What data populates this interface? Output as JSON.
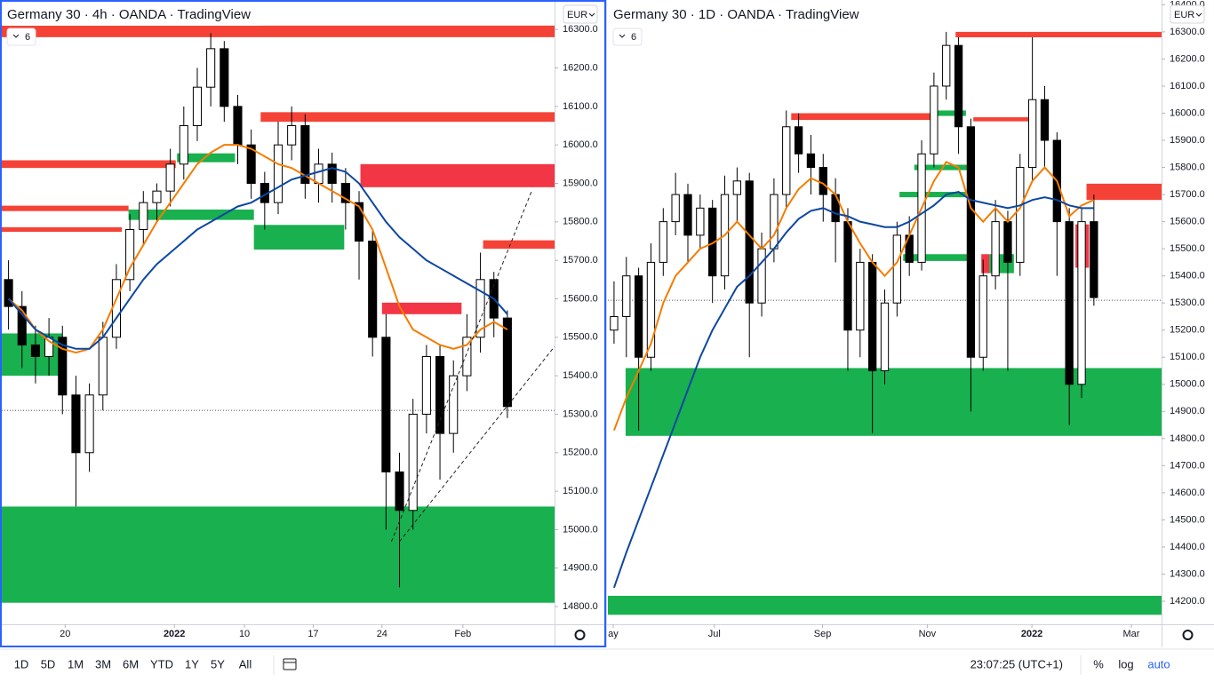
{
  "chart_data": [
    {
      "type": "candlestick",
      "title": "Germany 30 · 4h · OANDA · TradingView",
      "indicator_count": 6,
      "currency": "EUR",
      "x": [
        0,
        1,
        2,
        3,
        4,
        5,
        6,
        7,
        8,
        9,
        10,
        11,
        12,
        13,
        14,
        15,
        16,
        17,
        18,
        19,
        20,
        21,
        22,
        23,
        24,
        25,
        26,
        27,
        28,
        29,
        30,
        31,
        32,
        33,
        34,
        35,
        36,
        37
      ],
      "open": [
        15650,
        15580,
        15480,
        15450,
        15500,
        15350,
        15200,
        15350,
        15500,
        15650,
        15780,
        15850,
        15880,
        15950,
        16050,
        16150,
        16250,
        16100,
        16000,
        15900,
        15850,
        16000,
        16050,
        15900,
        15950,
        15900,
        15850,
        15750,
        15500,
        15150,
        15050,
        15300,
        15450,
        15250,
        15400,
        15500,
        15650,
        15550
      ],
      "high": [
        15700,
        15620,
        15530,
        15550,
        15530,
        15400,
        15380,
        15540,
        15690,
        15820,
        15880,
        15900,
        15990,
        16100,
        16200,
        16290,
        16270,
        16130,
        16040,
        15930,
        16060,
        16100,
        16080,
        15990,
        15980,
        15940,
        15880,
        15780,
        15560,
        15200,
        15340,
        15480,
        15480,
        15440,
        15560,
        15720,
        15670,
        15570
      ],
      "low": [
        15520,
        15420,
        15380,
        15400,
        15300,
        15060,
        15150,
        15310,
        15470,
        15620,
        15740,
        15800,
        15840,
        15910,
        16010,
        16100,
        16060,
        15950,
        15860,
        15780,
        15820,
        15960,
        15860,
        15850,
        15850,
        15780,
        15650,
        15450,
        15000,
        14850,
        15000,
        15250,
        15130,
        15200,
        15360,
        15460,
        15500,
        15290
      ],
      "close": [
        15580,
        15480,
        15450,
        15500,
        15350,
        15200,
        15350,
        15500,
        15650,
        15780,
        15850,
        15880,
        15950,
        16050,
        16150,
        16250,
        16100,
        16000,
        15900,
        15850,
        16000,
        16050,
        15900,
        15950,
        15900,
        15850,
        15750,
        15500,
        15150,
        15050,
        15300,
        15450,
        15250,
        15400,
        15500,
        15650,
        15550,
        15320
      ],
      "candle_colors": {
        "up": "#ffffff",
        "down": "#000000",
        "border": "#000000"
      },
      "moving_averages": [
        {
          "color": "#f57c00",
          "values": [
            15600,
            15570,
            15520,
            15490,
            15470,
            15460,
            15470,
            15520,
            15600,
            15680,
            15740,
            15800,
            15850,
            15900,
            15950,
            15980,
            16000,
            16000,
            15990,
            15970,
            15950,
            15940,
            15920,
            15900,
            15880,
            15860,
            15840,
            15780,
            15680,
            15580,
            15520,
            15500,
            15480,
            15470,
            15480,
            15520,
            15540,
            15520
          ]
        },
        {
          "color": "#0d47a1",
          "values": [
            15600,
            15560,
            15520,
            15500,
            15480,
            15470,
            15470,
            15500,
            15550,
            15600,
            15650,
            15690,
            15720,
            15750,
            15780,
            15800,
            15820,
            15840,
            15850,
            15870,
            15890,
            15910,
            15920,
            15930,
            15940,
            15930,
            15900,
            15850,
            15800,
            15760,
            15730,
            15700,
            15680,
            15660,
            15640,
            15620,
            15600,
            15560
          ]
        }
      ],
      "zones": [
        {
          "color": "#f44336",
          "x": [
            -0.5,
            40.5
          ],
          "y": [
            16280,
            16310
          ]
        },
        {
          "color": "#f44336",
          "x": [
            18.7,
            40.5
          ],
          "y": [
            16060,
            16085
          ]
        },
        {
          "color": "#f44336",
          "x": [
            -0.5,
            12.4
          ],
          "y": [
            15940,
            15960
          ]
        },
        {
          "color": "#f23645",
          "x": [
            26.1,
            40.5
          ],
          "y": [
            15890,
            15950
          ]
        },
        {
          "color": "#f44336",
          "x": [
            -0.5,
            8.9
          ],
          "y": [
            15828,
            15842
          ]
        },
        {
          "color": "#f44336",
          "x": [
            -0.5,
            8.4
          ],
          "y": [
            15774,
            15786
          ]
        },
        {
          "color": "#f44336",
          "x": [
            35.2,
            40.5
          ],
          "y": [
            15730,
            15752
          ]
        },
        {
          "color": "#f23645",
          "x": [
            27.7,
            33.6
          ],
          "y": [
            15560,
            15590
          ]
        },
        {
          "color": "#19b04f",
          "x": [
            12.5,
            16.8
          ],
          "y": [
            15955,
            15978
          ]
        },
        {
          "color": "#19b04f",
          "x": [
            8.9,
            18.2
          ],
          "y": [
            15805,
            15832
          ]
        },
        {
          "color": "#19b04f",
          "x": [
            18.2,
            24.9
          ],
          "y": [
            15728,
            15792
          ]
        },
        {
          "color": "#19b04f",
          "x": [
            -0.5,
            4.0
          ],
          "y": [
            15400,
            15510
          ]
        },
        {
          "color": "#19b04f",
          "x": [
            -0.5,
            40.5
          ],
          "y": [
            14810,
            15060
          ]
        }
      ],
      "trendlines": [
        {
          "x": [
            28.4,
            38.8
          ],
          "y": [
            14969,
            15880
          ]
        },
        {
          "x": [
            29.0,
            40.5
          ],
          "y": [
            14969,
            15476
          ]
        }
      ],
      "price_line": 15310,
      "xlim": [
        -0.5,
        40.5
      ],
      "ylim": [
        14754,
        16372
      ],
      "xticks": [
        {
          "value": 4.2,
          "label": "20"
        },
        {
          "value": 12.3,
          "label": "2022"
        },
        {
          "value": 17.5,
          "label": "10"
        },
        {
          "value": 22.6,
          "label": "17"
        },
        {
          "value": 27.7,
          "label": "24"
        },
        {
          "value": 33.7,
          "label": "Feb"
        }
      ],
      "yticks": [
        {
          "value": 14800,
          "label": "14800.0"
        },
        {
          "value": 14900,
          "label": "14900.0"
        },
        {
          "value": 15000,
          "label": "15000.0"
        },
        {
          "value": 15100,
          "label": "15100.0"
        },
        {
          "value": 15200,
          "label": "15200.0"
        },
        {
          "value": 15300,
          "label": "15300.0"
        },
        {
          "value": 15400,
          "label": "15400.0"
        },
        {
          "value": 15500,
          "label": "15500.0"
        },
        {
          "value": 15600,
          "label": "15600.0"
        },
        {
          "value": 15700,
          "label": "15700.0"
        },
        {
          "value": 15800,
          "label": "15800.0"
        },
        {
          "value": 15900,
          "label": "15900.0"
        },
        {
          "value": 16000,
          "label": "16000.0"
        },
        {
          "value": 16100,
          "label": "16100.0"
        },
        {
          "value": 16200,
          "label": "16200.0"
        },
        {
          "value": 16300,
          "label": "16300.0"
        }
      ]
    },
    {
      "type": "candlestick",
      "title": "Germany 30 · 1D · OANDA · TradingView",
      "indicator_count": 6,
      "currency": "EUR",
      "x": [
        0,
        1,
        2,
        3,
        4,
        5,
        6,
        7,
        8,
        9,
        10,
        11,
        12,
        13,
        14,
        15,
        16,
        17,
        18,
        19,
        20,
        21,
        22,
        23,
        24,
        25,
        26,
        27,
        28,
        29,
        30,
        31,
        32,
        33,
        34,
        35,
        36,
        37,
        38,
        39
      ],
      "open": [
        15200,
        15250,
        15400,
        15100,
        15450,
        15600,
        15700,
        15550,
        15650,
        15400,
        15700,
        15750,
        15300,
        15500,
        15700,
        15950,
        15850,
        15800,
        15700,
        15600,
        15200,
        15450,
        15050,
        15300,
        15550,
        15450,
        15850,
        16100,
        16250,
        15950,
        15100,
        15400,
        15600,
        15450,
        15800,
        16050,
        15900,
        15600,
        15000,
        15600
      ],
      "high": [
        15380,
        15470,
        15430,
        15520,
        15650,
        15780,
        15740,
        15700,
        15680,
        15770,
        15800,
        15780,
        15560,
        15760,
        16010,
        16000,
        15920,
        15850,
        15760,
        15650,
        15500,
        15480,
        15350,
        15600,
        15620,
        15900,
        16150,
        16300,
        16280,
        15980,
        15460,
        15680,
        15640,
        15850,
        16280,
        16100,
        15930,
        15650,
        15650,
        15700
      ],
      "low": [
        15150,
        15100,
        14830,
        15050,
        15400,
        15550,
        15450,
        15500,
        15300,
        15350,
        15600,
        15100,
        15250,
        15450,
        15650,
        15780,
        15700,
        15600,
        15450,
        15050,
        15100,
        14820,
        15000,
        15250,
        15400,
        15420,
        15800,
        16050,
        15850,
        14900,
        15050,
        15350,
        15050,
        15400,
        15750,
        15800,
        15400,
        14850,
        14950,
        15290
      ],
      "close": [
        15250,
        15400,
        15100,
        15450,
        15600,
        15700,
        15550,
        15650,
        15400,
        15700,
        15750,
        15300,
        15500,
        15700,
        15950,
        15850,
        15800,
        15700,
        15600,
        15200,
        15450,
        15050,
        15300,
        15550,
        15450,
        15850,
        16100,
        16250,
        15950,
        15100,
        15400,
        15600,
        15450,
        15800,
        16050,
        15900,
        15600,
        15000,
        15600,
        15320
      ],
      "candle_colors": {
        "up": "#ffffff",
        "down": "#000000",
        "border": "#000000"
      },
      "moving_averages": [
        {
          "color": "#f57c00",
          "values": [
            14830,
            14950,
            15050,
            15150,
            15300,
            15400,
            15450,
            15500,
            15520,
            15550,
            15600,
            15550,
            15500,
            15550,
            15650,
            15720,
            15760,
            15740,
            15700,
            15600,
            15520,
            15450,
            15400,
            15450,
            15550,
            15650,
            15750,
            15820,
            15800,
            15650,
            15600,
            15650,
            15600,
            15650,
            15750,
            15800,
            15750,
            15620,
            15660,
            15680
          ]
        },
        {
          "color": "#0d47a1",
          "values": [
            14250,
            14380,
            14500,
            14620,
            14740,
            14860,
            14980,
            15100,
            15200,
            15280,
            15360,
            15400,
            15450,
            15500,
            15560,
            15610,
            15640,
            15650,
            15630,
            15620,
            15600,
            15590,
            15580,
            15580,
            15600,
            15630,
            15660,
            15700,
            15710,
            15680,
            15670,
            15660,
            15650,
            15660,
            15680,
            15690,
            15680,
            15660,
            15650,
            15650
          ]
        }
      ],
      "zones": [
        {
          "color": "#f44336",
          "x": [
            27.76,
            44.5
          ],
          "y": [
            16280,
            16300
          ]
        },
        {
          "color": "#f44336",
          "x": [
            14.4,
            26.0
          ],
          "y": [
            15975,
            16000
          ]
        },
        {
          "color": "#f44336",
          "x": [
            29.2,
            33.9
          ],
          "y": [
            15970,
            15985
          ]
        },
        {
          "color": "#f44336",
          "x": [
            38.4,
            44.5
          ],
          "y": [
            15680,
            15740
          ]
        },
        {
          "color": "#f23645",
          "x": [
            37.5,
            38.6
          ],
          "y": [
            15430,
            15590
          ]
        },
        {
          "color": "#f23645",
          "x": [
            29.85,
            30.5
          ],
          "y": [
            15410,
            15480
          ]
        },
        {
          "color": "#19b04f",
          "x": [
            26.0,
            28.6
          ],
          "y": [
            15990,
            16010
          ]
        },
        {
          "color": "#19b04f",
          "x": [
            24.4,
            29.2
          ],
          "y": [
            15790,
            15810
          ]
        },
        {
          "color": "#19b04f",
          "x": [
            23.2,
            29.2
          ],
          "y": [
            15690,
            15710
          ]
        },
        {
          "color": "#19b04f",
          "x": [
            23.5,
            29.2
          ],
          "y": [
            15455,
            15480
          ]
        },
        {
          "color": "#19b04f",
          "x": [
            30.5,
            32.5
          ],
          "y": [
            15410,
            15480
          ]
        },
        {
          "color": "#19b04f",
          "x": [
            0.94,
            44.5
          ],
          "y": [
            14810,
            15060
          ]
        },
        {
          "color": "#19b04f",
          "x": [
            -0.5,
            44.5
          ],
          "y": [
            14150,
            14220
          ]
        }
      ],
      "trendlines": [],
      "price_line": 15310,
      "xlim": [
        -0.5,
        44.5
      ],
      "ylim": [
        14115,
        16411
      ],
      "xticks": [
        {
          "value": -0.07,
          "label": "ay"
        },
        {
          "value": 8.15,
          "label": "Jul"
        },
        {
          "value": 16.95,
          "label": "Sep"
        },
        {
          "value": 25.46,
          "label": "Nov"
        },
        {
          "value": 33.96,
          "label": "2022"
        },
        {
          "value": 42.04,
          "label": "Mar"
        }
      ],
      "yticks": [
        {
          "value": 14200,
          "label": "14200.0"
        },
        {
          "value": 14300,
          "label": "14300.0"
        },
        {
          "value": 14400,
          "label": "14400.0"
        },
        {
          "value": 14500,
          "label": "14500.0"
        },
        {
          "value": 14600,
          "label": "14600.0"
        },
        {
          "value": 14700,
          "label": "14700.0"
        },
        {
          "value": 14800,
          "label": "14800.0"
        },
        {
          "value": 14900,
          "label": "14900.0"
        },
        {
          "value": 15000,
          "label": "15000.0"
        },
        {
          "value": 15100,
          "label": "15100.0"
        },
        {
          "value": 15200,
          "label": "15200.0"
        },
        {
          "value": 15300,
          "label": "15300.0"
        },
        {
          "value": 15400,
          "label": "15400.0"
        },
        {
          "value": 15500,
          "label": "15500.0"
        },
        {
          "value": 15600,
          "label": "15600.0"
        },
        {
          "value": 15700,
          "label": "15700.0"
        },
        {
          "value": 15800,
          "label": "15800.0"
        },
        {
          "value": 15900,
          "label": "15900.0"
        },
        {
          "value": 16000,
          "label": "16000.0"
        },
        {
          "value": 16100,
          "label": "16100.0"
        },
        {
          "value": 16200,
          "label": "16200.0"
        },
        {
          "value": 16300,
          "label": "16300.0"
        },
        {
          "value": 16400,
          "label": "16400.0"
        }
      ]
    }
  ],
  "toolbar": {
    "ranges": [
      "1D",
      "5D",
      "1M",
      "3M",
      "6M",
      "YTD",
      "1Y",
      "5Y",
      "All"
    ],
    "clock": "23:07:25 (UTC+1)",
    "options": [
      "%",
      "log",
      "auto"
    ]
  }
}
